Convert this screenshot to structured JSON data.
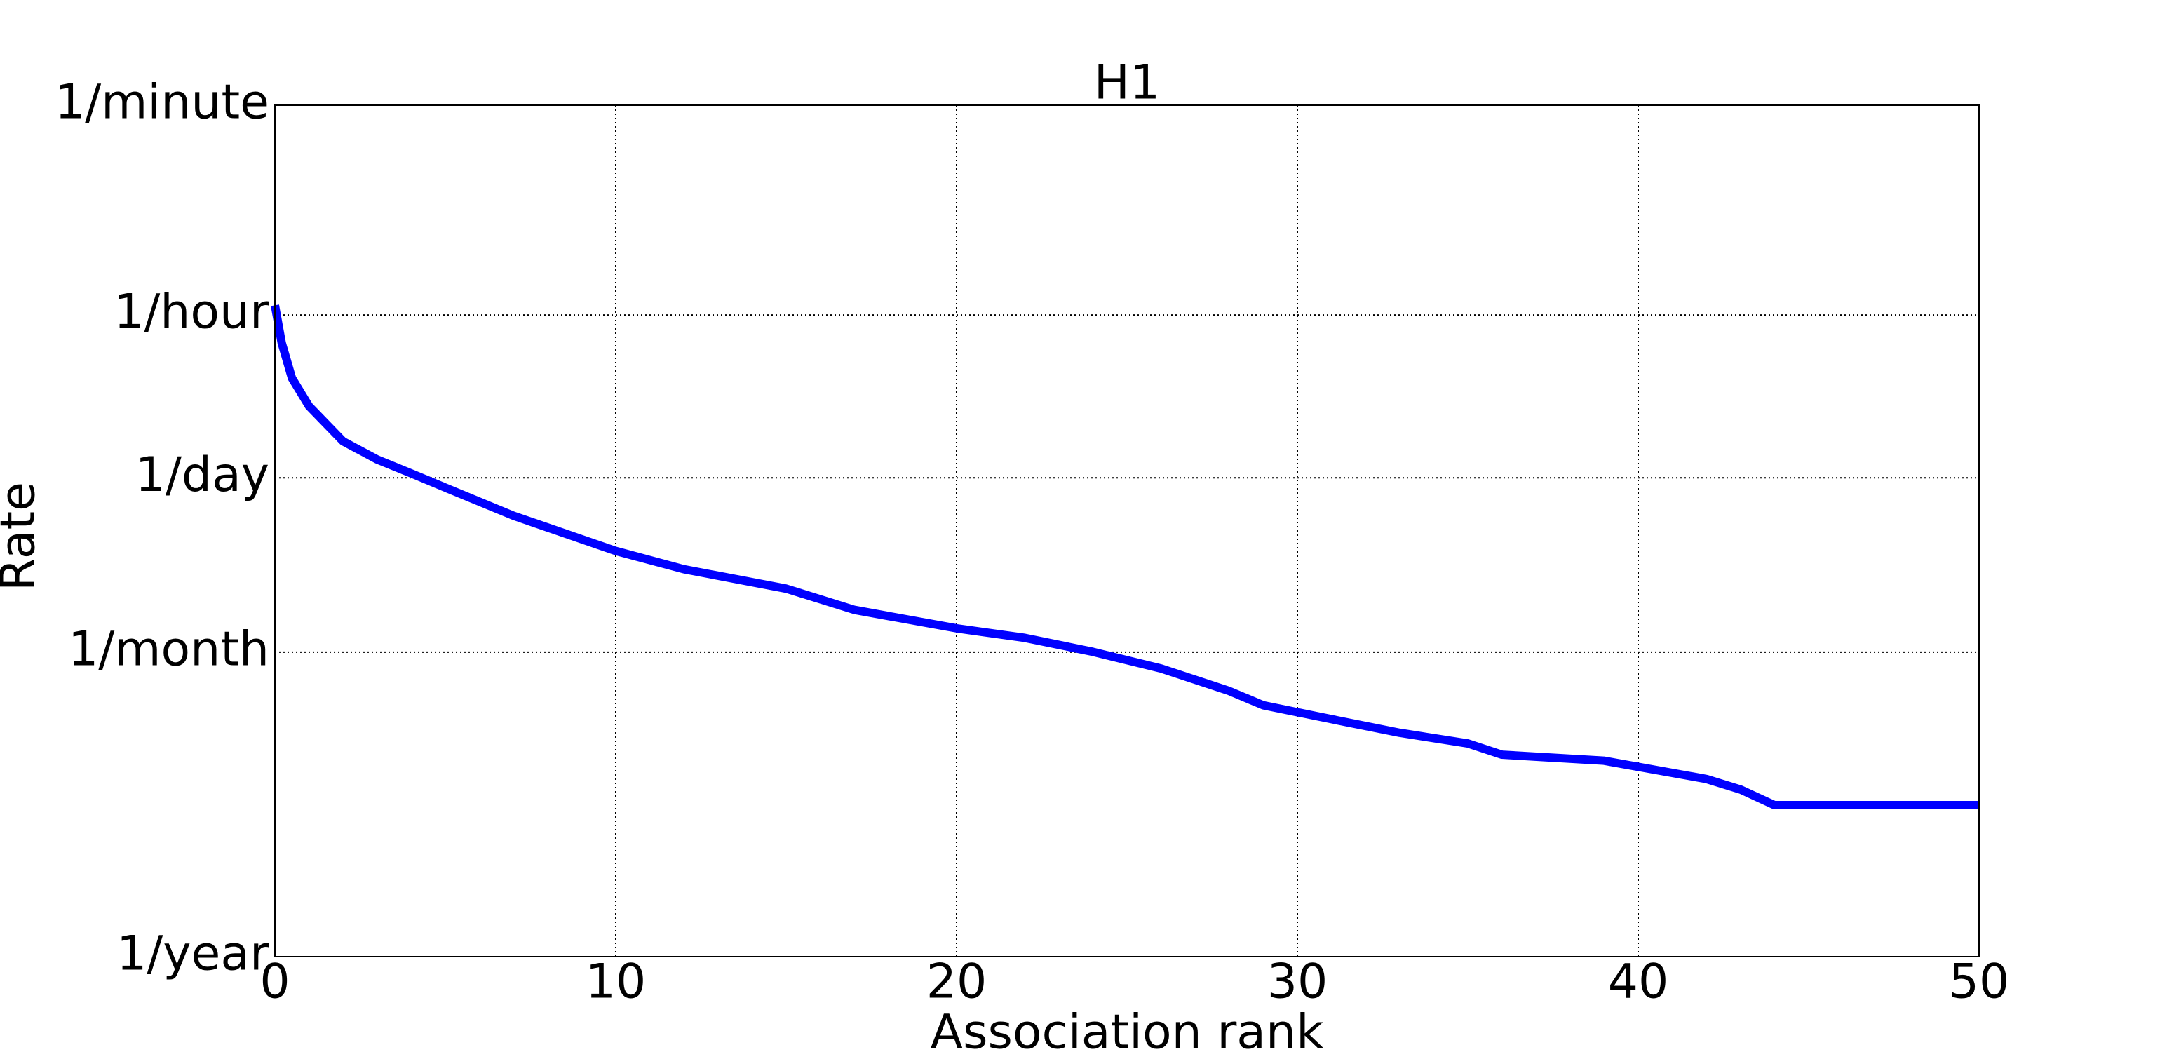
{
  "chart_data": {
    "type": "line",
    "title": "H1",
    "xlabel": "Association rank",
    "ylabel": "Rate",
    "x": [
      0,
      0.2,
      0.5,
      1,
      2,
      3,
      4,
      5,
      7,
      10,
      12,
      15,
      17,
      20,
      22,
      24,
      26,
      28,
      29,
      31,
      33,
      35,
      36,
      39,
      42,
      43,
      44,
      50
    ],
    "values": [
      29,
      13.9,
      7,
      4.05,
      2.04,
      1.43,
      1.09,
      0.826,
      0.477,
      0.24,
      0.168,
      0.115,
      0.076,
      0.053,
      0.044,
      0.0335,
      0.0242,
      0.0156,
      0.0118,
      0.009,
      0.0069,
      0.0056,
      0.0045,
      0.004,
      0.0028,
      0.00228,
      0.00168,
      0.00168
    ],
    "color": "#0000ff",
    "xlim": [
      0,
      50
    ],
    "xticks": [
      0,
      10,
      20,
      30,
      40,
      50
    ],
    "ylim": [
      8.74e-05,
      1440
    ],
    "yticks": [
      {
        "value": 8.74e-05,
        "label": "1/year"
      },
      {
        "value": 0.0333,
        "label": "1/month"
      },
      {
        "value": 1,
        "label": "1/day"
      },
      {
        "value": 24,
        "label": "1/hour"
      },
      {
        "value": 1440,
        "label": "1/minute"
      }
    ],
    "ylog": true,
    "grid": true
  }
}
